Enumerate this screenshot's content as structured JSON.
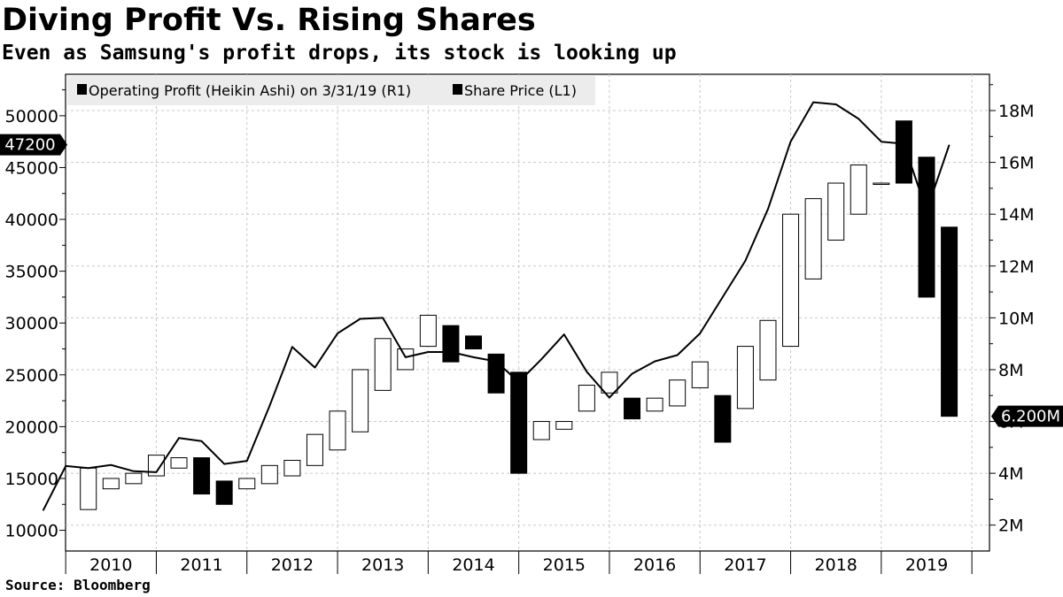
{
  "title": "Diving Profit Vs. Rising Shares",
  "subtitle": "Even as Samsung's profit drops, its stock is looking up",
  "source": "Source: Bloomberg",
  "chart_data": {
    "type": "candlestick+line",
    "grid": true,
    "legend_position": "top-left",
    "legend": [
      {
        "name": "Operating Profit (Heikin Ashi) on 3/31/19 (R1)"
      },
      {
        "name": "Share Price (L1)"
      }
    ],
    "x_years": [
      "2010",
      "2011",
      "2012",
      "2013",
      "2014",
      "2015",
      "2016",
      "2017",
      "2018",
      "2019"
    ],
    "left_axis": {
      "ticks": [
        10000,
        15000,
        20000,
        25000,
        30000,
        35000,
        40000,
        45000,
        50000
      ],
      "ylim": [
        8000,
        54000
      ],
      "last_value_label": "47200",
      "last_value": 47200
    },
    "right_axis": {
      "ticks": [
        2,
        4,
        6,
        8,
        10,
        12,
        14,
        16,
        18
      ],
      "tick_labels": [
        "2M",
        "4M",
        "6M",
        "8M",
        "10M",
        "12M",
        "14M",
        "16M",
        "18M"
      ],
      "ylim": [
        1.0,
        19.4
      ],
      "last_value_label": "6.200M",
      "last_value": 6.2
    },
    "share_price": {
      "name": "Share Price",
      "axis": "left",
      "x": [
        2009.25,
        2009.5,
        2009.75,
        2010.0,
        2010.25,
        2010.5,
        2010.75,
        2011.0,
        2011.25,
        2011.5,
        2011.75,
        2012.0,
        2012.25,
        2012.5,
        2012.75,
        2013.0,
        2013.25,
        2013.5,
        2013.75,
        2014.0,
        2014.25,
        2014.5,
        2014.75,
        2015.0,
        2015.25,
        2015.5,
        2015.75,
        2016.0,
        2016.25,
        2016.5,
        2016.75,
        2017.0,
        2017.25,
        2017.5,
        2017.75,
        2018.0,
        2018.25,
        2018.5,
        2018.75,
        2019.0,
        2019.25
      ],
      "values": [
        11900,
        16200,
        16000,
        16300,
        15700,
        15600,
        18900,
        18600,
        16400,
        16700,
        22000,
        27700,
        25700,
        29000,
        30400,
        30500,
        26700,
        27200,
        27200,
        26700,
        26300,
        24300,
        26500,
        28900,
        25300,
        22800,
        25100,
        26300,
        26900,
        29000,
        32500,
        36000,
        41000,
        47500,
        51300,
        51100,
        49700,
        47500,
        47300,
        40800,
        47200
      ]
    },
    "operating_profit_candles": {
      "name": "Operating Profit (Heikin Ashi)",
      "axis": "right",
      "unit": "M",
      "x": [
        2009.75,
        2010.0,
        2010.25,
        2010.5,
        2010.75,
        2011.0,
        2011.25,
        2011.5,
        2011.75,
        2012.0,
        2012.25,
        2012.5,
        2012.75,
        2013.0,
        2013.25,
        2013.5,
        2013.75,
        2014.0,
        2014.25,
        2014.5,
        2014.75,
        2015.0,
        2015.25,
        2015.5,
        2015.75,
        2016.0,
        2016.25,
        2016.5,
        2016.75,
        2017.0,
        2017.25,
        2017.5,
        2017.75,
        2018.0,
        2018.25,
        2018.5,
        2018.75,
        2019.0,
        2019.25
      ],
      "open": [
        2.6,
        3.4,
        3.6,
        3.9,
        4.2,
        4.6,
        3.7,
        3.4,
        3.6,
        3.9,
        4.3,
        4.9,
        5.6,
        7.2,
        8.0,
        8.9,
        9.7,
        9.3,
        8.6,
        7.9,
        5.3,
        5.7,
        6.4,
        7.1,
        6.9,
        6.4,
        6.6,
        7.3,
        7.0,
        6.5,
        7.6,
        8.9,
        11.5,
        13.0,
        14.0,
        15.2,
        17.6,
        16.2,
        13.5
      ],
      "close": [
        4.2,
        3.8,
        4.0,
        4.7,
        4.6,
        3.2,
        2.8,
        3.8,
        4.3,
        4.5,
        5.5,
        6.4,
        8.0,
        9.2,
        8.8,
        10.1,
        8.3,
        8.8,
        7.1,
        4.0,
        6.0,
        6.0,
        7.4,
        7.9,
        6.1,
        6.9,
        7.6,
        8.3,
        5.2,
        8.9,
        9.9,
        14.0,
        14.6,
        15.2,
        15.9,
        15.2,
        15.2,
        10.8,
        6.2
      ]
    }
  }
}
